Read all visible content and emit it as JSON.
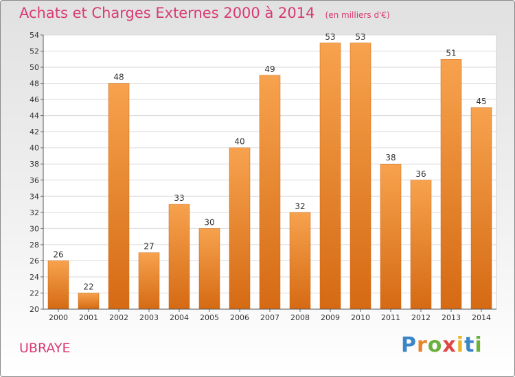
{
  "chart_data": {
    "type": "bar",
    "title": "Achats et Charges Externes 2000 à 2014",
    "subtitle": "(en milliers d'€)",
    "categories": [
      "2000",
      "2001",
      "2002",
      "2003",
      "2004",
      "2005",
      "2006",
      "2007",
      "2008",
      "2009",
      "2010",
      "2011",
      "2012",
      "2013",
      "2014"
    ],
    "values": [
      26,
      22,
      48,
      27,
      33,
      30,
      40,
      49,
      32,
      53,
      53,
      38,
      36,
      51,
      45
    ],
    "ylim": [
      20,
      54
    ],
    "yticks": [
      20,
      22,
      24,
      26,
      28,
      30,
      32,
      34,
      36,
      38,
      40,
      42,
      44,
      46,
      48,
      50,
      52,
      54
    ],
    "grid": true,
    "bar_color": "#f0892e",
    "title_color": "#d83a73"
  },
  "footer": {
    "place": "UBRAYE"
  },
  "brand": {
    "letters": [
      "P",
      "r",
      "o",
      "x",
      "i",
      "t",
      "i"
    ],
    "colors": [
      "#3b86c9",
      "#e8852b",
      "#6bb03d",
      "#e04646",
      "#e8b52b",
      "#3b86c9",
      "#6bb03d"
    ]
  }
}
